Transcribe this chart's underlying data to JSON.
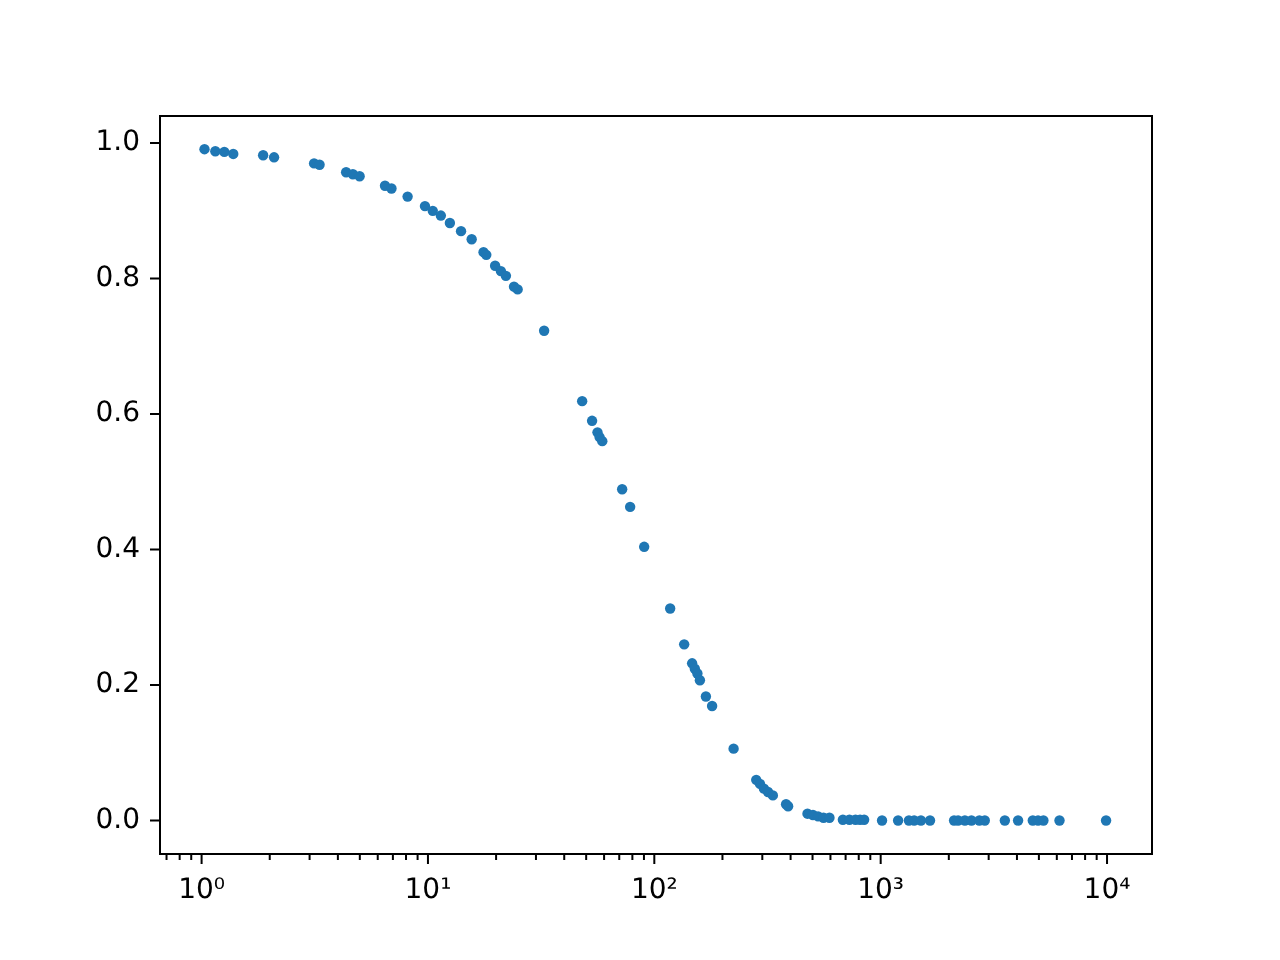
{
  "chart_data": {
    "type": "scatter",
    "log": "x",
    "marker": "circle",
    "color": "#1f77b4",
    "xlim": [
      0.655,
      15800
    ],
    "ylim": [
      -0.0495,
      1.04
    ],
    "xticks": [
      {
        "value": 0.7,
        "label": null
      },
      {
        "value": 0.8,
        "label": null
      },
      {
        "value": 0.9,
        "label": null
      },
      {
        "value": 1,
        "label": "10⁰"
      },
      {
        "value": 2,
        "label": null
      },
      {
        "value": 3,
        "label": null
      },
      {
        "value": 4,
        "label": null
      },
      {
        "value": 5,
        "label": null
      },
      {
        "value": 6,
        "label": null
      },
      {
        "value": 7,
        "label": null
      },
      {
        "value": 8,
        "label": null
      },
      {
        "value": 9,
        "label": null
      },
      {
        "value": 10,
        "label": "10¹"
      },
      {
        "value": 20,
        "label": null
      },
      {
        "value": 30,
        "label": null
      },
      {
        "value": 40,
        "label": null
      },
      {
        "value": 50,
        "label": null
      },
      {
        "value": 60,
        "label": null
      },
      {
        "value": 70,
        "label": null
      },
      {
        "value": 80,
        "label": null
      },
      {
        "value": 90,
        "label": null
      },
      {
        "value": 100,
        "label": "10²"
      },
      {
        "value": 200,
        "label": null
      },
      {
        "value": 300,
        "label": null
      },
      {
        "value": 400,
        "label": null
      },
      {
        "value": 500,
        "label": null
      },
      {
        "value": 600,
        "label": null
      },
      {
        "value": 700,
        "label": null
      },
      {
        "value": 800,
        "label": null
      },
      {
        "value": 900,
        "label": null
      },
      {
        "value": 1000,
        "label": "10³"
      },
      {
        "value": 2000,
        "label": null
      },
      {
        "value": 3000,
        "label": null
      },
      {
        "value": 4000,
        "label": null
      },
      {
        "value": 5000,
        "label": null
      },
      {
        "value": 6000,
        "label": null
      },
      {
        "value": 7000,
        "label": null
      },
      {
        "value": 8000,
        "label": null
      },
      {
        "value": 9000,
        "label": null
      },
      {
        "value": 10000,
        "label": "10⁴"
      }
    ],
    "yticks": [
      {
        "value": 0,
        "label": "0.0"
      },
      {
        "value": 0.2,
        "label": "0.2"
      },
      {
        "value": 0.4,
        "label": "0.4"
      },
      {
        "value": 0.6,
        "label": "0.6"
      },
      {
        "value": 0.8,
        "label": "0.8"
      },
      {
        "value": 1,
        "label": "1.0"
      }
    ],
    "x": [
      1.03,
      1.15,
      1.26,
      1.38,
      1.87,
      2.09,
      3.14,
      3.32,
      4.35,
      4.66,
      4.99,
      6.46,
      6.9,
      8.13,
      9.7,
      10.5,
      11.4,
      12.5,
      14.0,
      15.6,
      17.6,
      18.1,
      19.8,
      21.0,
      22.1,
      24.0,
      24.9,
      32.6,
      48.0,
      53.1,
      56.1,
      57.3,
      58.9,
      72.1,
      78.2,
      90.2,
      117.5,
      135.5,
      146.9,
      151,
      155,
      159,
      169,
      180,
      224,
      282,
      293,
      305,
      318,
      334,
      382,
      390,
      475,
      502,
      529,
      559,
      594,
      681,
      728,
      774,
      811,
      845,
      1014,
      1194,
      1333,
      1406,
      1506,
      1652,
      2110,
      2198,
      2355,
      2518,
      2729,
      2884,
      3536,
      4046,
      4699,
      4957,
      5236,
      6166,
      9903
    ],
    "values": [
      0.991,
      0.988,
      0.987,
      0.984,
      0.982,
      0.979,
      0.97,
      0.968,
      0.957,
      0.954,
      0.951,
      0.937,
      0.933,
      0.921,
      0.907,
      0.9,
      0.893,
      0.882,
      0.87,
      0.858,
      0.839,
      0.835,
      0.819,
      0.811,
      0.804,
      0.788,
      0.784,
      0.723,
      0.619,
      0.59,
      0.573,
      0.566,
      0.56,
      0.489,
      0.463,
      0.404,
      0.313,
      0.26,
      0.232,
      0.224,
      0.217,
      0.207,
      0.183,
      0.169,
      0.106,
      0.06,
      0.054,
      0.047,
      0.042,
      0.037,
      0.024,
      0.021,
      0.01,
      0.008,
      0.006,
      0.004,
      0.004,
      0.001,
      0.001,
      0.001,
      0.001,
      0.001,
      0,
      0,
      0,
      0,
      0,
      0,
      0,
      0,
      0,
      0,
      0,
      0,
      0,
      0,
      0,
      0,
      0,
      0,
      0
    ]
  }
}
